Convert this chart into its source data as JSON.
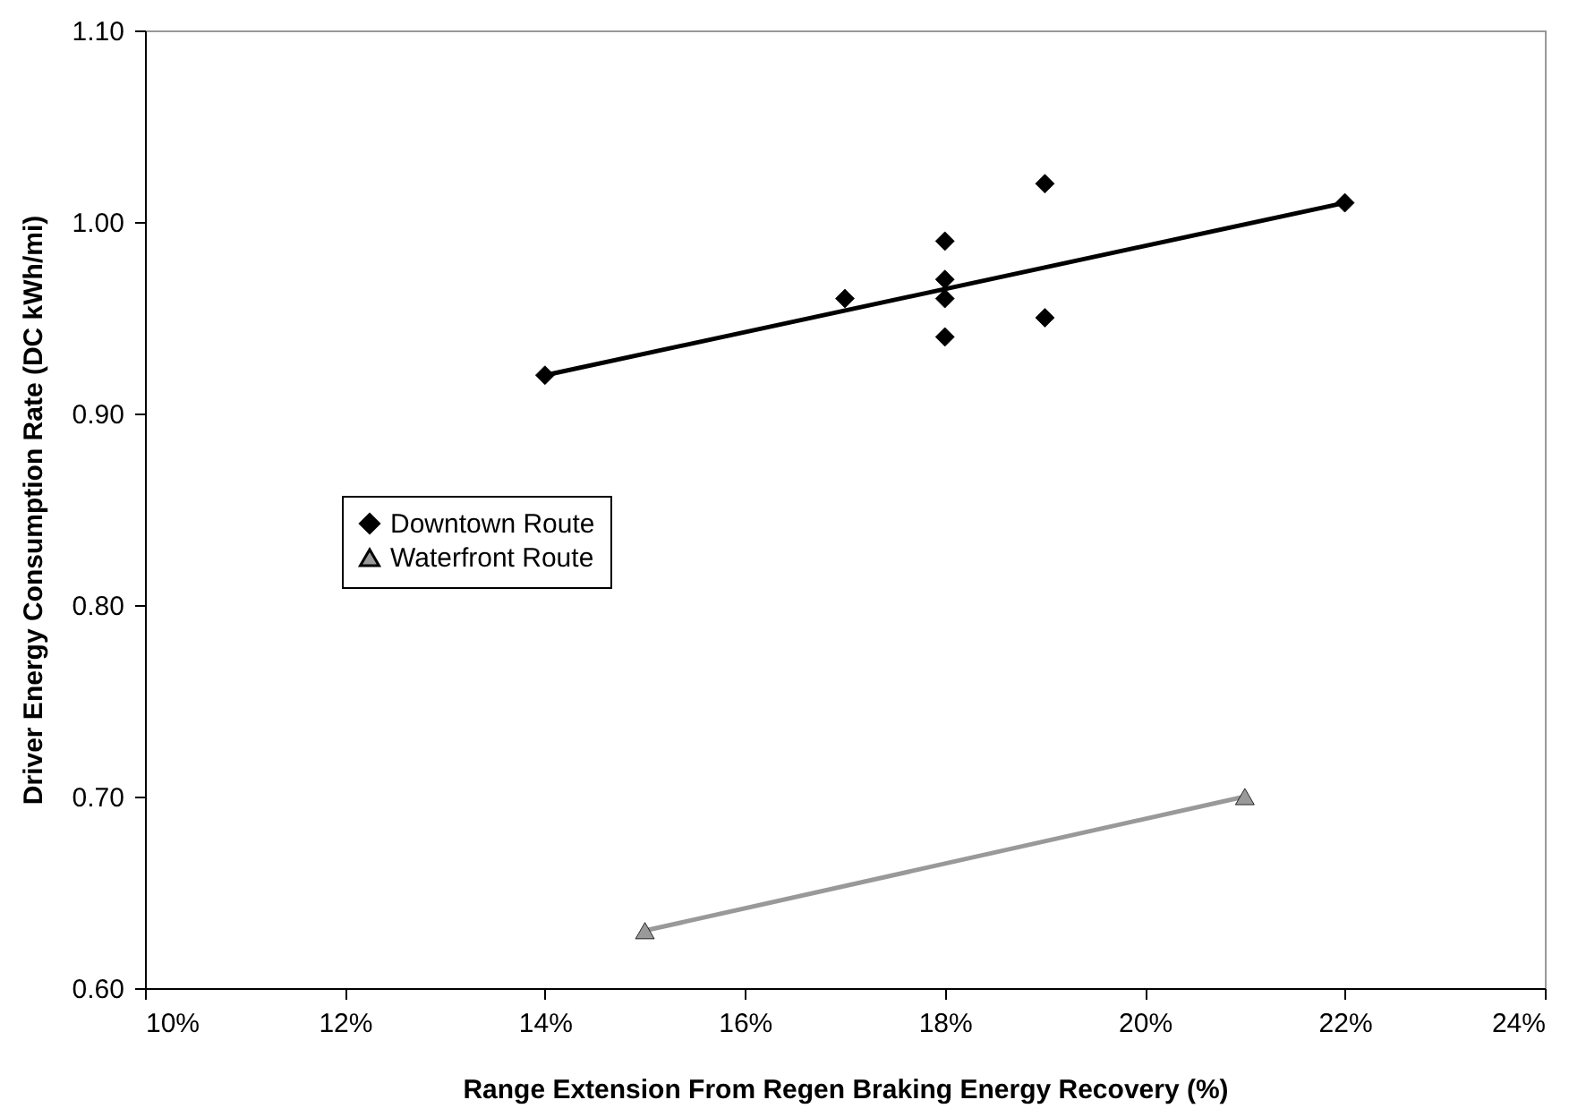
{
  "chart_data": {
    "type": "scatter",
    "xlabel": "Range Extension From Regen Braking Energy Recovery (%)",
    "ylabel": "Driver Energy Consumption Rate (DC kWh/mi)",
    "xlim": [
      10,
      24
    ],
    "xticks": [
      {
        "value": 10,
        "label": "10%"
      },
      {
        "value": 12,
        "label": "12%"
      },
      {
        "value": 14,
        "label": "14%"
      },
      {
        "value": 16,
        "label": "16%"
      },
      {
        "value": 18,
        "label": "18%"
      },
      {
        "value": 20,
        "label": "20%"
      },
      {
        "value": 22,
        "label": "22%"
      },
      {
        "value": 24,
        "label": "24%"
      }
    ],
    "ylim": [
      0.6,
      1.1
    ],
    "yticks": [
      {
        "value": 0.6,
        "label": "0.60"
      },
      {
        "value": 0.7,
        "label": "0.70"
      },
      {
        "value": 0.8,
        "label": "0.80"
      },
      {
        "value": 0.9,
        "label": "0.90"
      },
      {
        "value": 1.0,
        "label": "1.00"
      },
      {
        "value": 1.1,
        "label": "1.10"
      }
    ],
    "grid": false,
    "legend": "left",
    "series": [
      {
        "name": "Downtown Route",
        "marker": "diamond",
        "color": "#000000",
        "x": [
          14,
          17,
          18,
          18,
          18,
          18,
          19,
          19,
          22
        ],
        "values": [
          0.92,
          0.96,
          0.99,
          0.97,
          0.96,
          0.94,
          1.02,
          0.95,
          1.01
        ]
      },
      {
        "name": "Waterfront Route",
        "marker": "triangle",
        "color": "#999999",
        "x": [
          15,
          21
        ],
        "values": [
          0.63,
          0.7
        ]
      },
      {
        "type": "line",
        "color": "#000000",
        "x": [
          14,
          22
        ],
        "values": [
          0.92,
          1.01
        ]
      },
      {
        "type": "line",
        "color": "#999999",
        "x": [
          15,
          21
        ],
        "values": [
          0.63,
          0.7
        ]
      }
    ]
  }
}
